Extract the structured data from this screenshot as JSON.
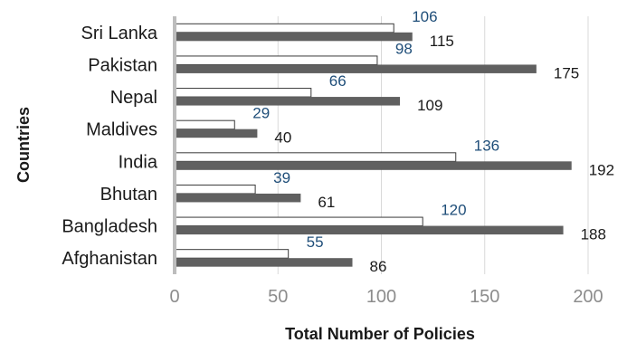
{
  "chart_data": {
    "type": "bar",
    "orientation": "horizontal",
    "categories": [
      "Sri Lanka",
      "Pakistan",
      "Nepal",
      "Maldives",
      "India",
      "Bhutan",
      "Bangladesh",
      "Afghanistan"
    ],
    "series": [
      {
        "values": [
          106,
          98,
          66,
          29,
          136,
          39,
          120,
          55
        ],
        "color": "#ffffff",
        "label_color": "#1f4e79"
      },
      {
        "values": [
          115,
          175,
          109,
          40,
          192,
          61,
          188,
          86
        ],
        "color": "#606060",
        "label_color": "#1a1a1a"
      }
    ],
    "x_ticks": [
      "0",
      "50",
      "100",
      "150",
      "200"
    ],
    "xlim": [
      0,
      200
    ],
    "xlabel": "Total Number of Policies",
    "ylabel": "Countries",
    "grid": true,
    "legend": "none"
  }
}
